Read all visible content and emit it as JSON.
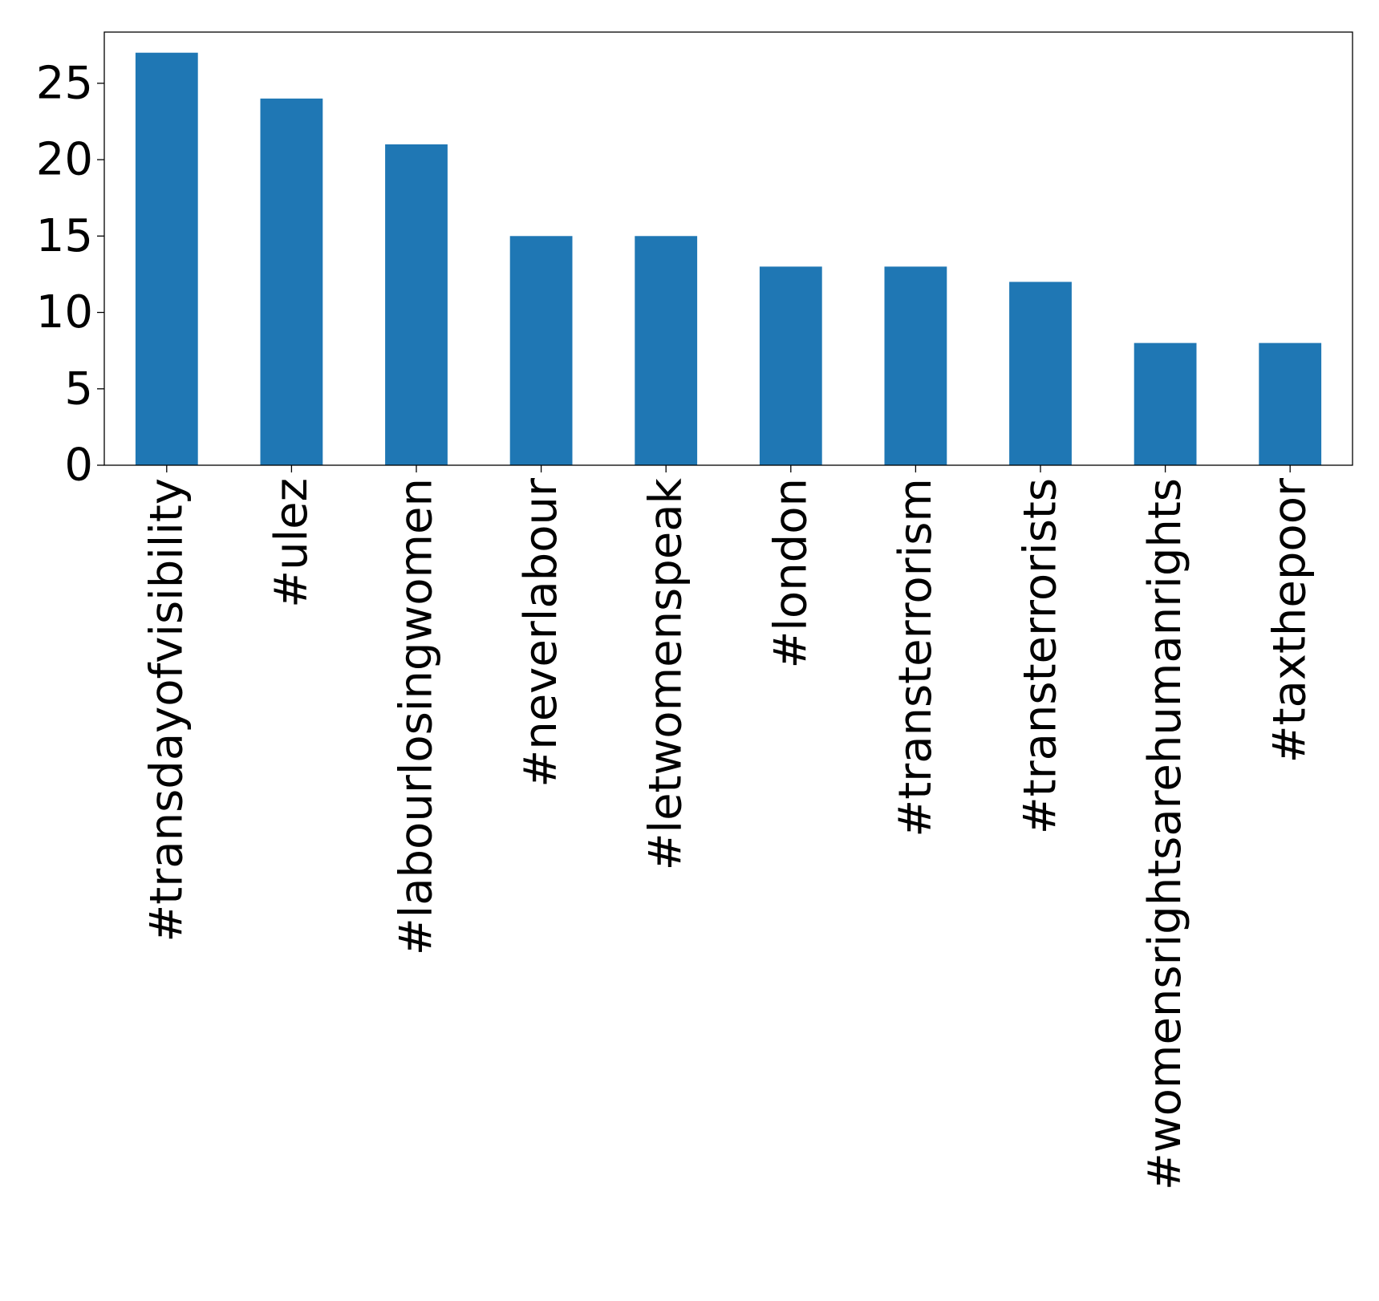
{
  "chart_data": {
    "type": "bar",
    "title": "",
    "xlabel": "",
    "ylabel": "",
    "categories": [
      "#transdayofvisibility",
      "#ulez",
      "#labourlosingwomen",
      "#neverlabour",
      "#letwomenspeak",
      "#london",
      "#transterrorism",
      "#transterrorists",
      "#womensrightsarehumanrights",
      "#taxthepoor"
    ],
    "values": [
      27,
      24,
      21,
      15,
      15,
      13,
      13,
      12,
      8,
      8
    ],
    "ylim": [
      0,
      28.35
    ],
    "yticks": [
      0,
      5,
      10,
      15,
      20,
      25
    ],
    "grid": false,
    "legend": "none",
    "bar_color": "#1f77b4"
  }
}
